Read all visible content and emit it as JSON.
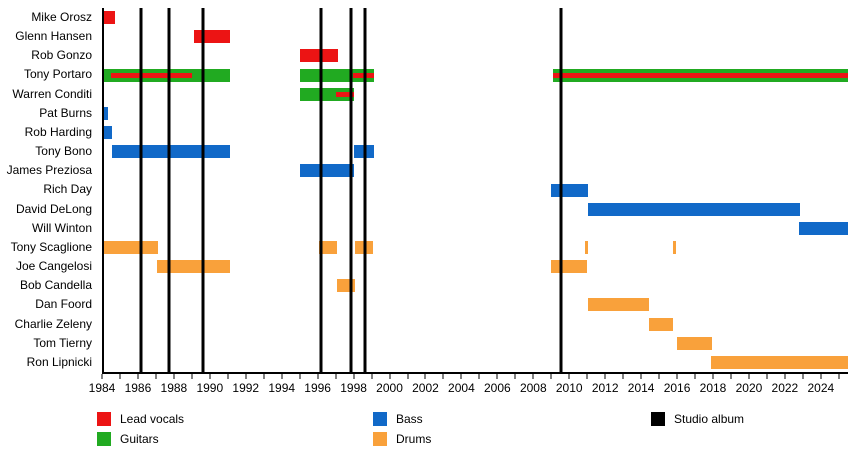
{
  "chart_data": {
    "type": "timeline",
    "title": "",
    "x_axis": {
      "min": 1984,
      "max": 2025.4,
      "minor_tick_step": 1,
      "major_label_step": 2,
      "tick_label_years": [
        1984,
        1986,
        1988,
        1990,
        1992,
        1994,
        1996,
        1998,
        2000,
        2002,
        2004,
        2006,
        2008,
        2010,
        2012,
        2014,
        2016,
        2018,
        2020,
        2022,
        2024
      ]
    },
    "roles": {
      "lead_vocals": {
        "label": "Lead vocals",
        "color": "#EC1414"
      },
      "guitars": {
        "label": "Guitars",
        "color": "#21AA21"
      },
      "bass": {
        "label": "Bass",
        "color": "#1169C8"
      },
      "drums": {
        "label": "Drums",
        "color": "#F9A13B"
      }
    },
    "albums": {
      "label": "Studio album",
      "color": "#000000",
      "years": [
        1986.05,
        1987.6,
        1989.5,
        1996.1,
        1997.75,
        1998.5,
        2009.45
      ]
    },
    "legend": {
      "position": "bottom",
      "items": [
        {
          "label": "Lead vocals",
          "color": "#EC1414",
          "column": 0,
          "row": 0
        },
        {
          "label": "Guitars",
          "color": "#21AA21",
          "column": 0,
          "row": 1
        },
        {
          "label": "Bass",
          "color": "#1169C8",
          "column": 1,
          "row": 0
        },
        {
          "label": "Drums",
          "color": "#F9A13B",
          "column": 1,
          "row": 1
        },
        {
          "label": "Studio album",
          "color": "#000000",
          "column": 2,
          "row": 0
        }
      ]
    },
    "members": [
      {
        "name": "Mike Orosz",
        "segments": [
          {
            "role": "lead_vocals",
            "start": 1984.0,
            "end": 1984.6
          }
        ]
      },
      {
        "name": "Glenn Hansen",
        "segments": [
          {
            "role": "lead_vocals",
            "start": 1989.0,
            "end": 1991.0
          }
        ]
      },
      {
        "name": "Rob Gonzo",
        "segments": [
          {
            "role": "lead_vocals",
            "start": 1994.9,
            "end": 1997.0
          }
        ]
      },
      {
        "name": "Tony Portaro",
        "segments": [
          {
            "role": "guitars",
            "start": 1984.0,
            "end": 1991.0
          },
          {
            "role": "guitars",
            "start": 1994.9,
            "end": 1999.0
          },
          {
            "role": "guitars",
            "start": 2009.0,
            "end": 2025.4
          },
          {
            "role": "lead_vocals",
            "start": 1984.4,
            "end": 1988.9,
            "overlay": true
          },
          {
            "role": "lead_vocals",
            "start": 1997.85,
            "end": 1999.0,
            "overlay": true
          },
          {
            "role": "lead_vocals",
            "start": 2009.0,
            "end": 2025.4,
            "overlay": true
          }
        ]
      },
      {
        "name": "Warren Conditi",
        "segments": [
          {
            "role": "guitars",
            "start": 1994.9,
            "end": 1997.9
          },
          {
            "role": "lead_vocals",
            "start": 1996.9,
            "end": 1997.9,
            "overlay": true
          }
        ]
      },
      {
        "name": "Pat Burns",
        "segments": [
          {
            "role": "bass",
            "start": 1984.0,
            "end": 1984.2
          }
        ]
      },
      {
        "name": "Rob Harding",
        "segments": [
          {
            "role": "bass",
            "start": 1984.0,
            "end": 1984.45
          }
        ]
      },
      {
        "name": "Tony Bono",
        "segments": [
          {
            "role": "bass",
            "start": 1984.45,
            "end": 1991.0
          },
          {
            "role": "bass",
            "start": 1997.9,
            "end": 1999.05
          }
        ]
      },
      {
        "name": "James Preziosa",
        "segments": [
          {
            "role": "bass",
            "start": 1994.9,
            "end": 1997.9
          }
        ]
      },
      {
        "name": "Rich Day",
        "segments": [
          {
            "role": "bass",
            "start": 2008.9,
            "end": 2010.95
          }
        ]
      },
      {
        "name": "David DeLong",
        "segments": [
          {
            "role": "bass",
            "start": 2010.95,
            "end": 2022.75
          }
        ]
      },
      {
        "name": "Will Winton",
        "segments": [
          {
            "role": "bass",
            "start": 2022.7,
            "end": 2025.4
          }
        ]
      },
      {
        "name": "Tony Scaglione",
        "segments": [
          {
            "role": "drums",
            "start": 1984.0,
            "end": 1987.0
          },
          {
            "role": "drums",
            "start": 1995.95,
            "end": 1996.95
          },
          {
            "role": "drums",
            "start": 1997.95,
            "end": 1998.95
          },
          {
            "role": "drums",
            "start": 2010.75,
            "end": 2010.95
          },
          {
            "role": "drums",
            "start": 2015.65,
            "end": 2015.85
          }
        ]
      },
      {
        "name": "Joe Cangelosi",
        "segments": [
          {
            "role": "drums",
            "start": 1986.95,
            "end": 1991.0
          },
          {
            "role": "drums",
            "start": 2008.9,
            "end": 2010.85
          }
        ]
      },
      {
        "name": "Bob Candella",
        "segments": [
          {
            "role": "drums",
            "start": 1996.95,
            "end": 1997.95
          }
        ]
      },
      {
        "name": "Dan Foord",
        "segments": [
          {
            "role": "drums",
            "start": 2010.95,
            "end": 2014.35
          }
        ]
      },
      {
        "name": "Charlie Zeleny",
        "segments": [
          {
            "role": "drums",
            "start": 2014.3,
            "end": 2015.65
          }
        ]
      },
      {
        "name": "Tom Tierny",
        "segments": [
          {
            "role": "drums",
            "start": 2015.9,
            "end": 2017.85
          }
        ]
      },
      {
        "name": "Ron Lipnicki",
        "segments": [
          {
            "role": "drums",
            "start": 2017.8,
            "end": 2025.4
          }
        ]
      }
    ]
  }
}
